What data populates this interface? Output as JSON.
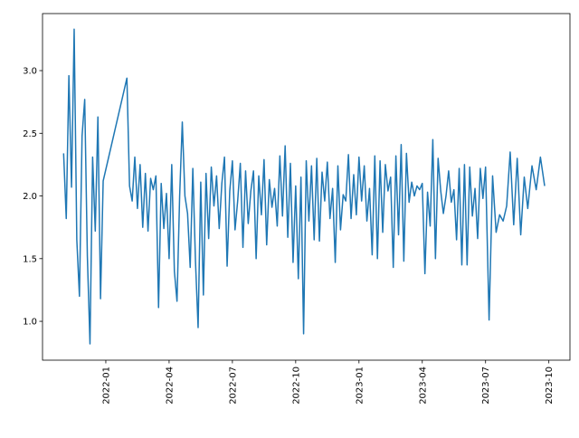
{
  "chart_data": {
    "type": "line",
    "x": [
      "2021-11",
      "2021-11",
      "2021-11",
      "2021-11",
      "2021-11",
      "2021-11",
      "2021-11",
      "2021-11",
      "2021-12",
      "2021-12",
      "2021-12",
      "2021-12",
      "2021-12",
      "2021-12",
      "2021-12",
      "2021-12",
      "2022-02",
      "2022-02",
      "2022-02",
      "2022-02",
      "2022-02",
      "2022-02",
      "2022-02",
      "2022-02",
      "2022-03",
      "2022-03",
      "2022-03",
      "2022-03",
      "2022-03",
      "2022-03",
      "2022-03",
      "2022-03",
      "2022-04",
      "2022-04",
      "2022-04",
      "2022-04",
      "2022-04",
      "2022-04",
      "2022-04",
      "2022-04",
      "2022-05",
      "2022-05",
      "2022-05",
      "2022-05",
      "2022-05",
      "2022-05",
      "2022-05",
      "2022-05",
      "2022-06",
      "2022-06",
      "2022-06",
      "2022-06",
      "2022-06",
      "2022-06",
      "2022-06",
      "2022-06",
      "2022-07",
      "2022-07",
      "2022-07",
      "2022-07",
      "2022-07",
      "2022-07",
      "2022-07",
      "2022-07",
      "2022-08",
      "2022-08",
      "2022-08",
      "2022-08",
      "2022-08",
      "2022-08",
      "2022-08",
      "2022-08",
      "2022-09",
      "2022-09",
      "2022-09",
      "2022-09",
      "2022-09",
      "2022-09",
      "2022-09",
      "2022-09",
      "2022-10",
      "2022-10",
      "2022-10",
      "2022-10",
      "2022-10",
      "2022-10",
      "2022-10",
      "2022-10",
      "2022-11",
      "2022-11",
      "2022-11",
      "2022-11",
      "2022-11",
      "2022-11",
      "2022-11",
      "2022-11",
      "2022-12",
      "2022-12",
      "2022-12",
      "2022-12",
      "2022-12",
      "2022-12",
      "2022-12",
      "2022-12",
      "2023-01",
      "2023-01",
      "2023-01",
      "2023-01",
      "2023-01",
      "2023-01",
      "2023-01",
      "2023-01",
      "2023-02",
      "2023-02",
      "2023-02",
      "2023-02",
      "2023-02",
      "2023-02",
      "2023-02",
      "2023-02",
      "2023-03",
      "2023-03",
      "2023-03",
      "2023-03",
      "2023-03",
      "2023-03",
      "2023-03",
      "2023-03",
      "2023-04",
      "2023-04",
      "2023-04",
      "2023-04",
      "2023-04",
      "2023-04",
      "2023-04",
      "2023-04",
      "2023-05",
      "2023-05",
      "2023-05",
      "2023-05",
      "2023-05",
      "2023-05",
      "2023-05",
      "2023-05",
      "2023-06",
      "2023-06",
      "2023-06",
      "2023-06",
      "2023-06",
      "2023-06",
      "2023-06",
      "2023-06",
      "2023-07",
      "2023-07",
      "2023-07",
      "2023-07",
      "2023-07",
      "2023-07",
      "2023-08",
      "2023-08",
      "2023-08",
      "2023-08",
      "2023-08",
      "2023-08",
      "2023-09",
      "2023-09",
      "2023-09",
      "2023-09",
      "2023-09"
    ],
    "values": [
      2.34,
      1.82,
      2.96,
      2.07,
      3.33,
      1.65,
      1.2,
      2.48,
      2.77,
      1.52,
      0.82,
      2.31,
      1.72,
      2.63,
      1.18,
      2.12,
      2.94,
      2.08,
      1.96,
      2.31,
      1.9,
      2.25,
      1.75,
      2.18,
      1.72,
      2.14,
      2.05,
      2.16,
      1.11,
      2.1,
      1.74,
      2.02,
      1.5,
      2.25,
      1.4,
      1.16,
      2.0,
      2.59,
      2.0,
      1.86,
      1.43,
      2.22,
      1.48,
      0.95,
      2.11,
      1.21,
      2.18,
      1.66,
      2.23,
      1.92,
      2.16,
      1.74,
      2.1,
      2.31,
      1.44,
      2.04,
      2.28,
      1.73,
      1.96,
      2.26,
      1.59,
      2.2,
      1.78,
      2.04,
      2.2,
      1.5,
      2.16,
      1.85,
      2.29,
      1.61,
      2.13,
      1.91,
      2.06,
      1.76,
      2.32,
      1.84,
      2.4,
      1.67,
      2.26,
      1.47,
      2.08,
      1.34,
      2.15,
      0.9,
      2.28,
      1.8,
      2.24,
      1.65,
      2.3,
      1.64,
      2.19,
      1.96,
      2.27,
      1.82,
      2.06,
      1.47,
      2.24,
      1.73,
      2.01,
      1.96,
      2.33,
      1.82,
      2.17,
      1.85,
      2.31,
      1.96,
      2.24,
      1.8,
      2.06,
      1.53,
      2.32,
      1.5,
      2.28,
      1.71,
      2.25,
      2.04,
      2.15,
      1.43,
      2.32,
      1.69,
      2.41,
      1.48,
      2.34,
      1.95,
      2.11,
      2.0,
      2.08,
      2.05,
      2.1,
      1.38,
      2.03,
      1.76,
      2.45,
      1.5,
      2.3,
      2.04,
      1.86,
      2.0,
      2.2,
      1.95,
      2.05,
      1.65,
      2.22,
      1.45,
      2.25,
      1.45,
      2.23,
      1.84,
      2.06,
      1.66,
      2.22,
      1.98,
      2.23,
      1.01,
      2.16,
      1.71,
      1.85,
      1.8,
      1.92,
      2.35,
      1.77,
      2.3,
      1.69,
      2.15,
      1.9,
      2.24,
      2.05,
      2.31,
      2.08
    ],
    "color": "#1f77b4",
    "xlim": [
      "2021-10",
      "2023-11"
    ],
    "xticks": [
      "2022-01",
      "2022-04",
      "2022-07",
      "2022-10",
      "2023-01",
      "2023-04",
      "2023-07",
      "2023-10"
    ],
    "ylim": [
      0.69,
      3.455
    ],
    "yticks": [
      {
        "value": 1,
        "label": "1.0"
      },
      {
        "value": 1.5,
        "label": "1.5"
      },
      {
        "value": 2,
        "label": "2.0"
      },
      {
        "value": 2.5,
        "label": "2.5"
      },
      {
        "value": 3,
        "label": "3.0"
      }
    ]
  }
}
